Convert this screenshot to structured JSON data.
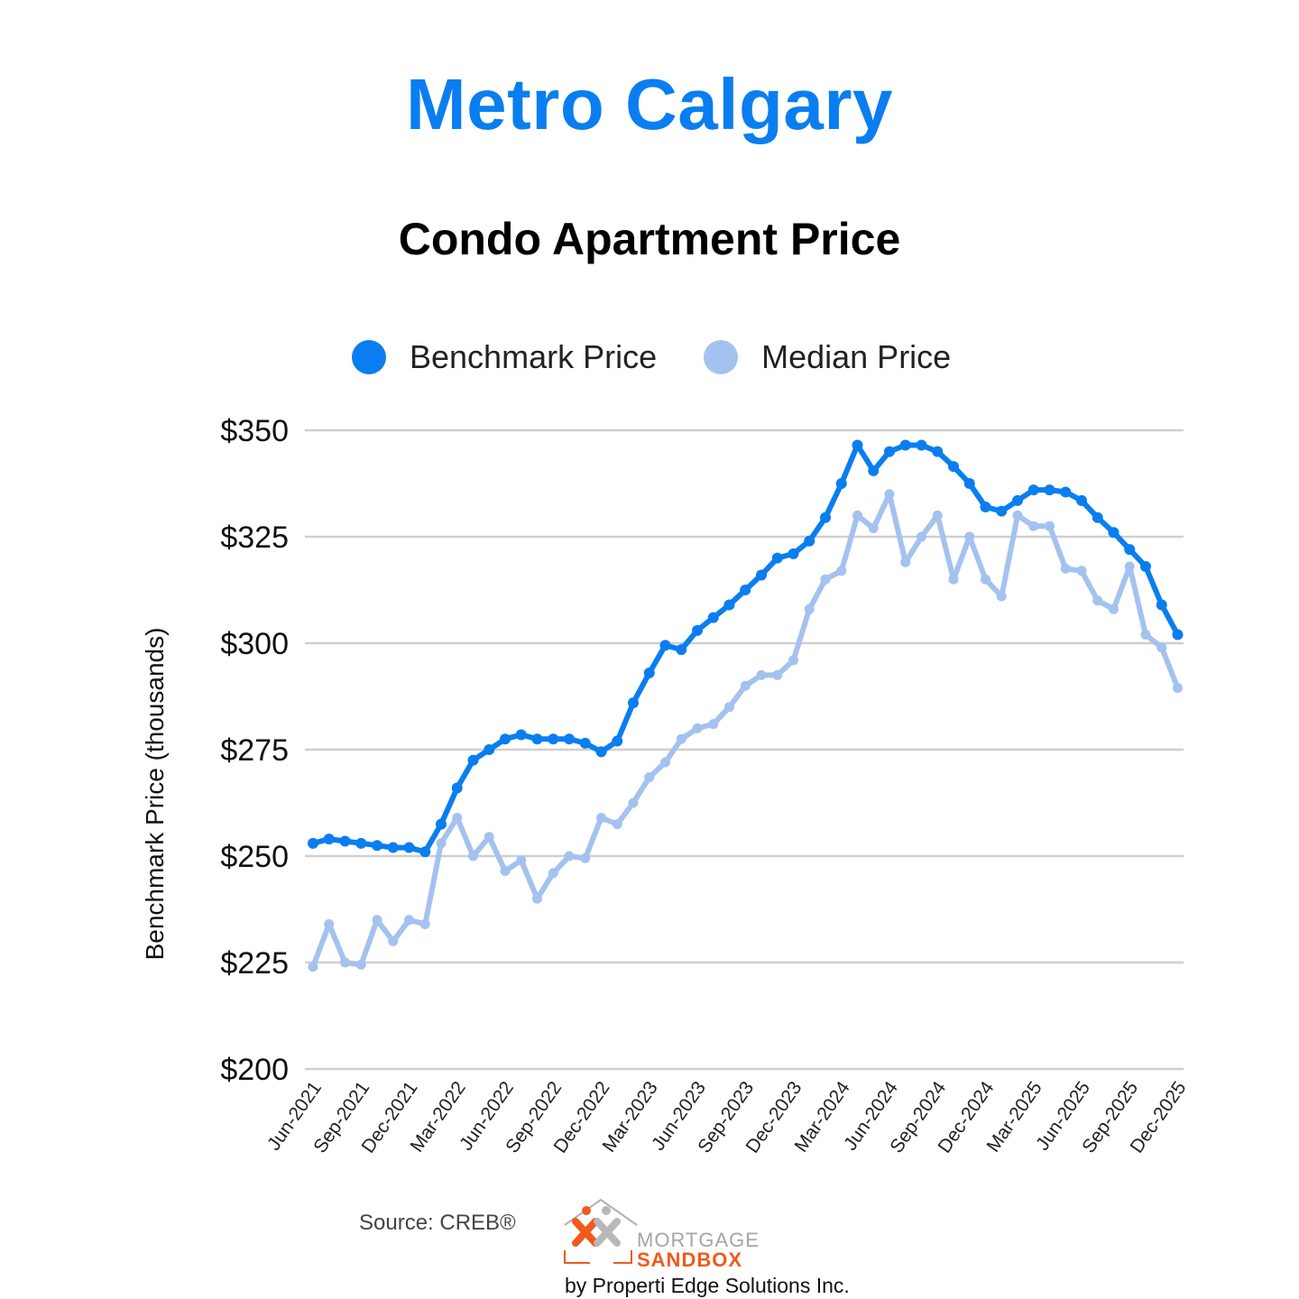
{
  "header": {
    "title": "Metro Calgary",
    "subtitle": "Condo Apartment Price"
  },
  "legend": [
    {
      "label": "Benchmark Price",
      "color": "#0a7ef0"
    },
    {
      "label": "Median Price",
      "color": "#a4c2f0"
    }
  ],
  "axes": {
    "ylabel": "Benchmark Price (thousands)",
    "yticks": [
      "$350",
      "$325",
      "$300",
      "$275",
      "$250",
      "$225",
      "$200"
    ],
    "xticks": [
      "Jun-2021",
      "Sep-2021",
      "Dec-2021",
      "Mar-2022",
      "Jun-2022",
      "Sep-2022",
      "Dec-2022",
      "Mar-2023",
      "Jun-2023",
      "Sep-2023",
      "Dec-2023",
      "Mar-2024",
      "Jun-2024",
      "Sep-2024",
      "Dec-2024",
      "Mar-2025",
      "Jun-2025",
      "Sep-2025",
      "Dec-2025"
    ]
  },
  "footer": {
    "source": "Source: CREB®",
    "logo_line1": "MORTGAGE",
    "logo_line2": "SANDBOX",
    "byline": "by Properti Edge Solutions Inc."
  },
  "chart_data": {
    "type": "line",
    "title": "Condo Apartment Price",
    "suptitle": "Metro Calgary",
    "xlabel": "",
    "ylabel": "Benchmark Price (thousands)",
    "ylim": [
      200,
      350
    ],
    "yticks": [
      200,
      225,
      250,
      275,
      300,
      325,
      350
    ],
    "grid": true,
    "legend_position": "top",
    "x": [
      "Jun-2021",
      "Jul-2021",
      "Aug-2021",
      "Sep-2021",
      "Oct-2021",
      "Nov-2021",
      "Dec-2021",
      "Jan-2022",
      "Feb-2022",
      "Mar-2022",
      "Apr-2022",
      "May-2022",
      "Jun-2022",
      "Jul-2022",
      "Aug-2022",
      "Sep-2022",
      "Oct-2022",
      "Nov-2022",
      "Dec-2022",
      "Jan-2023",
      "Feb-2023",
      "Mar-2023",
      "Apr-2023",
      "May-2023",
      "Jun-2023",
      "Jul-2023",
      "Aug-2023",
      "Sep-2023",
      "Oct-2023",
      "Nov-2023",
      "Dec-2023",
      "Jan-2024",
      "Feb-2024",
      "Mar-2024",
      "Apr-2024",
      "May-2024",
      "Jun-2024",
      "Jul-2024",
      "Aug-2024",
      "Sep-2024",
      "Oct-2024",
      "Nov-2024",
      "Dec-2024",
      "Jan-2025",
      "Feb-2025",
      "Mar-2025",
      "Apr-2025",
      "May-2025",
      "Jun-2025",
      "Jul-2025",
      "Aug-2025",
      "Sep-2025",
      "Oct-2025",
      "Nov-2025",
      "Dec-2025"
    ],
    "series": [
      {
        "name": "Benchmark Price",
        "color": "#0a7ef0",
        "values": [
          253,
          254,
          253.5,
          253,
          252.5,
          252,
          252,
          251,
          257.5,
          266,
          272.5,
          275,
          277.5,
          278.5,
          277.5,
          277.5,
          277.5,
          276.5,
          274.5,
          277,
          286,
          293,
          299.5,
          298.5,
          303,
          306,
          309,
          312.5,
          316,
          320,
          321,
          324,
          329.5,
          337.5,
          346.5,
          340.5,
          345,
          346.5,
          346.5,
          345,
          341.5,
          337.5,
          332,
          331,
          333.5,
          336,
          336,
          335.5,
          333.5,
          329.5,
          326,
          322,
          318,
          309,
          302
        ]
      },
      {
        "name": "Median Price",
        "color": "#a4c2f0",
        "values": [
          224,
          234,
          225,
          224.5,
          235,
          230,
          235,
          234,
          253,
          259,
          250,
          254.5,
          246.5,
          249,
          240,
          246,
          250,
          249.5,
          259,
          257.5,
          262.5,
          268.5,
          272,
          277.5,
          280,
          281,
          285,
          290,
          292.5,
          292.5,
          296,
          308,
          315,
          317,
          330,
          327,
          335,
          319,
          325,
          330,
          315,
          325,
          315,
          311,
          330,
          327.5,
          327.5,
          317.5,
          317,
          310,
          308,
          318,
          302,
          299,
          289.5
        ]
      }
    ]
  }
}
